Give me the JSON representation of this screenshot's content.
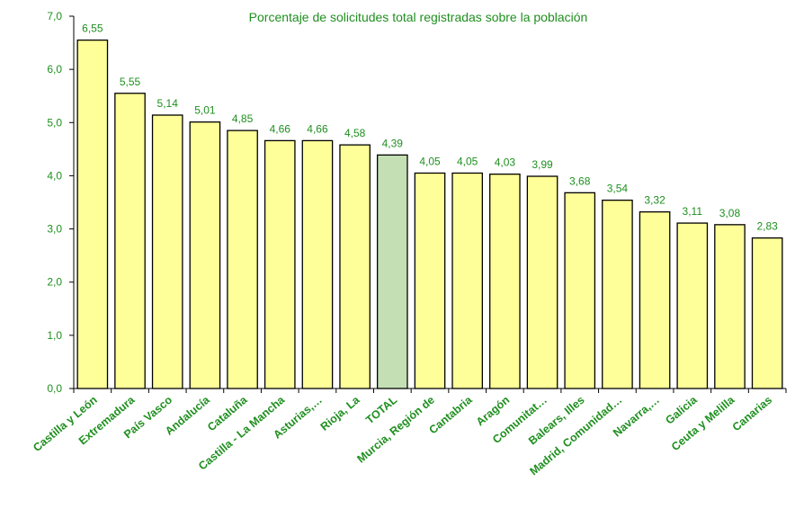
{
  "chart_data": {
    "type": "bar",
    "title": "Porcentaje de solicitudes total registradas sobre la población",
    "xlabel": "",
    "ylabel": "",
    "ylim": [
      0,
      7
    ],
    "yticks": [
      "0,0",
      "1,0",
      "2,0",
      "3,0",
      "4,0",
      "5,0",
      "6,0",
      "7,0"
    ],
    "ytick_values": [
      0,
      1,
      2,
      3,
      4,
      5,
      6,
      7
    ],
    "grid": false,
    "categories": [
      "Castilla y León",
      "Extremadura",
      "País Vasco",
      "Andalucía",
      "Cataluña",
      "Castilla - La Mancha",
      "Asturias,…",
      "Rioja, La",
      "TOTAL",
      "Murcia, Región de",
      "Cantabria",
      "Aragón",
      "Comunitat…",
      "Balears, Illes",
      "Madrid, Comunidad…",
      "Navarra,…",
      "Galicia",
      "Ceuta y Melilla",
      "Canarias"
    ],
    "values": [
      6.55,
      5.55,
      5.14,
      5.01,
      4.85,
      4.66,
      4.66,
      4.58,
      4.39,
      4.05,
      4.05,
      4.03,
      3.99,
      3.68,
      3.54,
      3.32,
      3.11,
      3.08,
      2.83
    ],
    "value_labels": [
      "6,55",
      "5,55",
      "5,14",
      "5,01",
      "4,85",
      "4,66",
      "4,66",
      "4,58",
      "4,39",
      "4,05",
      "4,05",
      "4,03",
      "3,99",
      "3,68",
      "3,54",
      "3,32",
      "3,11",
      "3,08",
      "2,83"
    ],
    "highlight_category": "TOTAL",
    "colors": {
      "bar": "#ffff99",
      "highlight": "#c4dfb4",
      "outline": "#000000",
      "text": "#1f8f1f",
      "axis": "#000000"
    }
  }
}
